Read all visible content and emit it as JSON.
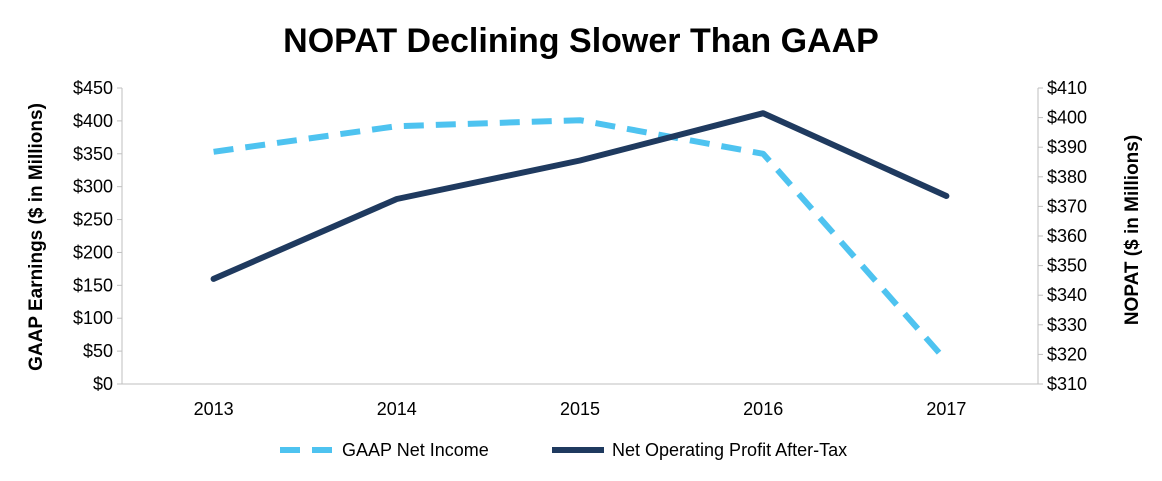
{
  "chart_data": {
    "type": "line",
    "title": "NOPAT Declining Slower Than GAAP",
    "ylabel_left": "GAAP Earnings ($ in Millions)",
    "ylabel_right": "NOPAT ($ in Millions)",
    "categories": [
      "2013",
      "2014",
      "2015",
      "2016",
      "2017"
    ],
    "ylim_left": [
      0,
      450
    ],
    "ylim_right": [
      310,
      410
    ],
    "yticks_left": [
      "$0",
      "$50",
      "$100",
      "$150",
      "$200",
      "$250",
      "$300",
      "$350",
      "$400",
      "$450"
    ],
    "yticks_right": [
      "$310",
      "$320",
      "$330",
      "$340",
      "$350",
      "$360",
      "$370",
      "$380",
      "$390",
      "$400",
      "$410"
    ],
    "grid": false,
    "legend_position": "bottom",
    "series": [
      {
        "name": "GAAP Net Income",
        "axis": "left",
        "style": "dashed",
        "color": "#4ec3f0",
        "values": [
          353,
          392,
          401,
          350,
          35
        ]
      },
      {
        "name": "Net Operating Profit After-Tax",
        "axis": "right",
        "style": "solid",
        "color": "#1f3a5f",
        "values": [
          345.5,
          372.5,
          385.5,
          401.5,
          373.5
        ]
      }
    ]
  }
}
